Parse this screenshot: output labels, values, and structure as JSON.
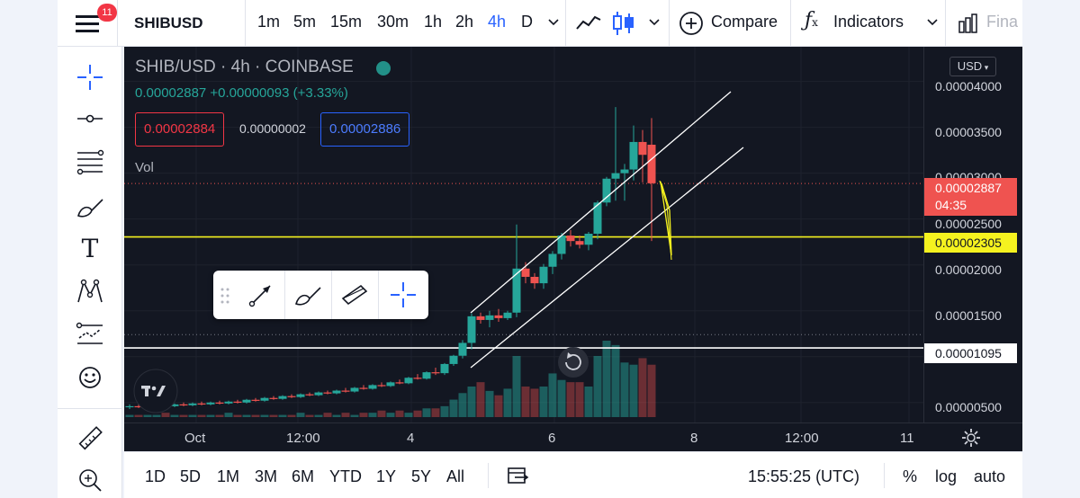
{
  "header": {
    "notification_count": "11",
    "symbol": "SHIBUSD",
    "timeframes": [
      "1m",
      "5m",
      "15m",
      "30m",
      "1h",
      "2h",
      "4h",
      "D"
    ],
    "active_timeframe": "4h",
    "compare_label": "Compare",
    "indicators_label": "Indicators",
    "financials_label": "Fina"
  },
  "legend": {
    "title": "SHIB/USD · 4h · COINBASE",
    "change": "0.00002887 +0.00000093 (+3.33%)",
    "bid": "0.00002884",
    "spread": "0.00000002",
    "ask": "0.00002886",
    "volume_label": "Vol"
  },
  "price_axis": {
    "currency": "USD",
    "labels": [
      "0.00004000",
      "0.00003500",
      "0.00003000",
      "0.00002500",
      "0.00002000",
      "0.00001500",
      "0.00000500"
    ],
    "last_price": "0.00002887",
    "countdown": "04:35",
    "yellow_line_price": "0.00002305",
    "white_line_price": "0.00001095"
  },
  "time_axis": {
    "labels": [
      "Oct",
      "12:00",
      "4",
      "6",
      "8",
      "12:00",
      "11"
    ]
  },
  "bottom": {
    "ranges": [
      "1D",
      "5D",
      "1M",
      "3M",
      "6M",
      "YTD",
      "1Y",
      "5Y",
      "All"
    ],
    "clock": "15:55:25 (UTC)",
    "percent_label": "%",
    "log_label": "log",
    "auto_label": "auto"
  },
  "colors": {
    "up": "#26a69a",
    "down": "#ef5350",
    "background": "#131722",
    "accent": "#2962ff",
    "yellow_line": "#f5f21f"
  },
  "chart_data": {
    "type": "candlestick",
    "symbol": "SHIB/USD",
    "interval": "4h",
    "exchange": "COINBASE",
    "ylim": [
      4e-06,
      4.28e-05
    ],
    "candles": [
      {
        "o": 4.5e-06,
        "h": 4.8e-06,
        "l": 4.3e-06,
        "c": 4.6e-06
      },
      {
        "o": 4.6e-06,
        "h": 4.8e-06,
        "l": 4.4e-06,
        "c": 4.5e-06
      },
      {
        "o": 4.5e-06,
        "h": 4.7e-06,
        "l": 4.4e-06,
        "c": 4.6e-06
      },
      {
        "o": 4.6e-06,
        "h": 4.8e-06,
        "l": 4.5e-06,
        "c": 4.7e-06
      },
      {
        "o": 4.7e-06,
        "h": 4.9e-06,
        "l": 4.5e-06,
        "c": 4.6e-06
      },
      {
        "o": 4.6e-06,
        "h": 4.9e-06,
        "l": 4.5e-06,
        "c": 4.8e-06
      },
      {
        "o": 4.8e-06,
        "h": 5e-06,
        "l": 4.6e-06,
        "c": 4.7e-06
      },
      {
        "o": 4.7e-06,
        "h": 5e-06,
        "l": 4.6e-06,
        "c": 4.9e-06
      },
      {
        "o": 4.9e-06,
        "h": 5.1e-06,
        "l": 4.7e-06,
        "c": 4.8e-06
      },
      {
        "o": 4.8e-06,
        "h": 5.1e-06,
        "l": 4.7e-06,
        "c": 5e-06
      },
      {
        "o": 5e-06,
        "h": 5.2e-06,
        "l": 4.8e-06,
        "c": 4.9e-06
      },
      {
        "o": 4.9e-06,
        "h": 5.2e-06,
        "l": 4.8e-06,
        "c": 5.1e-06
      },
      {
        "o": 5.1e-06,
        "h": 5.3e-06,
        "l": 4.9e-06,
        "c": 5e-06
      },
      {
        "o": 5e-06,
        "h": 5.4e-06,
        "l": 4.9e-06,
        "c": 5.3e-06
      },
      {
        "o": 5.3e-06,
        "h": 5.5e-06,
        "l": 5.1e-06,
        "c": 5.2e-06
      },
      {
        "o": 5.2e-06,
        "h": 5.6e-06,
        "l": 5.1e-06,
        "c": 5.5e-06
      },
      {
        "o": 5.5e-06,
        "h": 5.7e-06,
        "l": 5.3e-06,
        "c": 5.4e-06
      },
      {
        "o": 5.4e-06,
        "h": 5.8e-06,
        "l": 5.3e-06,
        "c": 5.7e-06
      },
      {
        "o": 5.7e-06,
        "h": 5.9e-06,
        "l": 5.5e-06,
        "c": 5.6e-06
      },
      {
        "o": 5.6e-06,
        "h": 6e-06,
        "l": 5.5e-06,
        "c": 5.9e-06
      },
      {
        "o": 5.9e-06,
        "h": 6.1e-06,
        "l": 5.7e-06,
        "c": 5.8e-06
      },
      {
        "o": 5.8e-06,
        "h": 6.2e-06,
        "l": 5.7e-06,
        "c": 6.1e-06
      },
      {
        "o": 6.1e-06,
        "h": 6.3e-06,
        "l": 5.9e-06,
        "c": 6e-06
      },
      {
        "o": 6e-06,
        "h": 6.4e-06,
        "l": 5.9e-06,
        "c": 6.3e-06
      },
      {
        "o": 6.3e-06,
        "h": 6.6e-06,
        "l": 6.1e-06,
        "c": 6.2e-06
      },
      {
        "o": 6.2e-06,
        "h": 6.7e-06,
        "l": 6.1e-06,
        "c": 6.6e-06
      },
      {
        "o": 6.6e-06,
        "h": 6.9e-06,
        "l": 6.4e-06,
        "c": 6.5e-06
      },
      {
        "o": 6.5e-06,
        "h": 7e-06,
        "l": 6.4e-06,
        "c": 6.9e-06
      },
      {
        "o": 6.9e-06,
        "h": 7.2e-06,
        "l": 6.7e-06,
        "c": 6.8e-06
      },
      {
        "o": 6.8e-06,
        "h": 7.3e-06,
        "l": 6.7e-06,
        "c": 7.2e-06
      },
      {
        "o": 7.2e-06,
        "h": 7.5e-06,
        "l": 7e-06,
        "c": 7.1e-06
      },
      {
        "o": 7.1e-06,
        "h": 7.8e-06,
        "l": 7e-06,
        "c": 7.7e-06
      },
      {
        "o": 7.7e-06,
        "h": 8.1e-06,
        "l": 7.5e-06,
        "c": 7.6e-06
      },
      {
        "o": 7.6e-06,
        "h": 8.4e-06,
        "l": 7.5e-06,
        "c": 8.3e-06
      },
      {
        "o": 8.3e-06,
        "h": 8.8e-06,
        "l": 8e-06,
        "c": 8.2e-06
      },
      {
        "o": 8.2e-06,
        "h": 9.3e-06,
        "l": 8e-06,
        "c": 9.2e-06
      },
      {
        "o": 9.2e-06,
        "h": 1.02e-05,
        "l": 9e-06,
        "c": 1.01e-05
      },
      {
        "o": 1.01e-05,
        "h": 1.18e-05,
        "l": 9.8e-06,
        "c": 1.15e-05
      },
      {
        "o": 1.15e-05,
        "h": 1.47e-05,
        "l": 1.08e-05,
        "c": 1.44e-05
      },
      {
        "o": 1.44e-05,
        "h": 1.48e-05,
        "l": 1.36e-05,
        "c": 1.4e-05
      },
      {
        "o": 1.4e-05,
        "h": 1.5e-05,
        "l": 1.32e-05,
        "c": 1.45e-05
      },
      {
        "o": 1.45e-05,
        "h": 1.52e-05,
        "l": 1.38e-05,
        "c": 1.42e-05
      },
      {
        "o": 1.42e-05,
        "h": 1.5e-05,
        "l": 1.4e-05,
        "c": 1.48e-05
      },
      {
        "o": 1.48e-05,
        "h": 2.44e-05,
        "l": 1.43e-05,
        "c": 1.96e-05
      },
      {
        "o": 1.96e-05,
        "h": 2.03e-05,
        "l": 1.8e-05,
        "c": 1.87e-05
      },
      {
        "o": 1.87e-05,
        "h": 1.91e-05,
        "l": 1.74e-05,
        "c": 1.8e-05
      },
      {
        "o": 1.8e-05,
        "h": 2.01e-05,
        "l": 1.74e-05,
        "c": 1.98e-05
      },
      {
        "o": 1.98e-05,
        "h": 2.15e-05,
        "l": 1.9e-05,
        "c": 2.12e-05
      },
      {
        "o": 2.12e-05,
        "h": 2.35e-05,
        "l": 2.06e-05,
        "c": 2.32e-05
      },
      {
        "o": 2.32e-05,
        "h": 2.38e-05,
        "l": 2.2e-05,
        "c": 2.26e-05
      },
      {
        "o": 2.26e-05,
        "h": 2.32e-05,
        "l": 2.18e-05,
        "c": 2.22e-05
      },
      {
        "o": 2.22e-05,
        "h": 2.36e-05,
        "l": 2.16e-05,
        "c": 2.34e-05
      },
      {
        "o": 2.34e-05,
        "h": 2.7e-05,
        "l": 2.28e-05,
        "c": 2.68e-05
      },
      {
        "o": 2.68e-05,
        "h": 2.96e-05,
        "l": 2.64e-05,
        "c": 2.94e-05
      },
      {
        "o": 2.94e-05,
        "h": 3.72e-05,
        "l": 2.7e-05,
        "c": 3e-05
      },
      {
        "o": 3e-05,
        "h": 3.1e-05,
        "l": 2.7e-05,
        "c": 3.04e-05
      },
      {
        "o": 3.04e-05,
        "h": 3.52e-05,
        "l": 2.92e-05,
        "c": 3.34e-05
      },
      {
        "o": 3.34e-05,
        "h": 3.47e-05,
        "l": 2.9e-05,
        "c": 3.2e-05
      },
      {
        "o": 3.31e-05,
        "h": 3.6e-05,
        "l": 2.26e-05,
        "c": 2.89e-05
      }
    ],
    "volume": [
      1,
      1,
      1,
      1,
      2,
      1,
      1,
      1,
      1,
      1,
      1,
      2,
      1,
      1,
      1,
      1,
      1,
      1,
      1,
      2,
      1,
      1,
      2,
      1,
      2,
      1,
      2,
      2,
      3,
      2,
      3,
      2,
      3,
      4,
      4,
      5,
      8,
      11,
      14,
      16,
      12,
      10,
      13,
      28,
      14,
      13,
      14,
      20,
      17,
      16,
      16,
      14,
      28,
      35,
      33,
      25,
      24,
      27,
      24
    ],
    "horizontal_lines": [
      2.305e-05,
      1.095e-05
    ],
    "last_price_line": 2.887e-05
  }
}
